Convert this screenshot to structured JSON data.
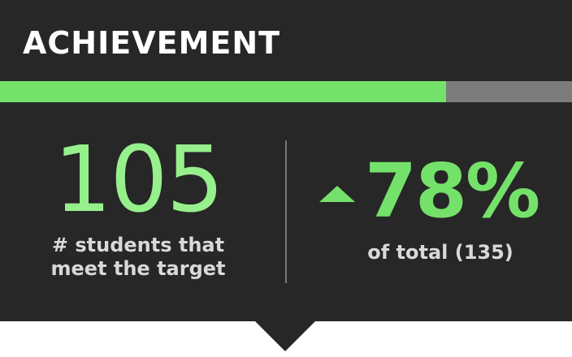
{
  "header": {
    "title": "ACHIEVEMENT"
  },
  "progress": {
    "fraction": 0.78
  },
  "count": {
    "value": "105",
    "label_line1": "# students that",
    "label_line2": "meet the target"
  },
  "percentage": {
    "value": "78%",
    "label": "of total (135)",
    "trend_icon": "triangle-up-icon"
  },
  "colors": {
    "background": "#272727",
    "accent": "#74e26a",
    "count_text": "#96f08c",
    "track": "#7c7c7c",
    "label_text": "#d9d9d9"
  }
}
